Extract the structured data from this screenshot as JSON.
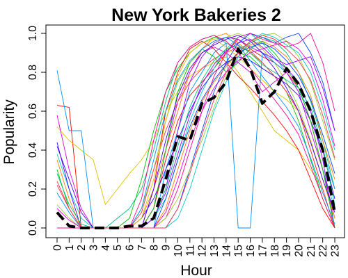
{
  "chart_data": {
    "type": "line",
    "title": "New York Bakeries 2",
    "xlabel": "Hour",
    "ylabel": "Popularity",
    "x": [
      0,
      1,
      2,
      3,
      4,
      5,
      6,
      7,
      8,
      9,
      10,
      11,
      12,
      13,
      14,
      15,
      16,
      17,
      18,
      19,
      20,
      21,
      22,
      23
    ],
    "x_tick_labels": [
      "0",
      "1",
      "2",
      "3",
      "4",
      "5",
      "6",
      "7",
      "8",
      "9",
      "10",
      "11",
      "12",
      "13",
      "14",
      "15",
      "16",
      "17",
      "18",
      "19",
      "20",
      "21",
      "22",
      "23"
    ],
    "y_tick_labels": [
      "0.0",
      "0.2",
      "0.4",
      "0.6",
      "0.8",
      "1.0"
    ],
    "y_ticks": [
      0,
      0.2,
      0.4,
      0.6,
      0.8,
      1.0
    ],
    "xlim": [
      0,
      23
    ],
    "ylim": [
      0,
      1.0
    ],
    "grid": false,
    "legend": "none",
    "mean_series": {
      "style": "black-dashed",
      "values": [
        0.08,
        0.01,
        0.0,
        0.0,
        0.0,
        0.0,
        0.01,
        0.01,
        0.05,
        0.25,
        0.47,
        0.45,
        0.64,
        0.67,
        0.75,
        0.92,
        0.82,
        0.64,
        0.7,
        0.82,
        0.74,
        0.6,
        0.4,
        0.08
      ]
    },
    "series_palette": [
      "#ff0000",
      "#ff7f00",
      "#e0c000",
      "#9acd32",
      "#00c000",
      "#00c080",
      "#00c8c8",
      "#0090ff",
      "#0040ff",
      "#4000ff",
      "#9000ff",
      "#e000e0",
      "#ff0090",
      "#ff3050"
    ],
    "series": [
      {
        "values": [
          0.63,
          0.62,
          0.0,
          0.0,
          0.0,
          0.0,
          0.0,
          0.0,
          0.1,
          0.35,
          0.55,
          0.68,
          0.75,
          0.82,
          0.9,
          0.97,
          0.92,
          0.88,
          0.85,
          0.8,
          0.72,
          0.55,
          0.3,
          0.05
        ]
      },
      {
        "values": [
          0.0,
          0.0,
          0.0,
          0.0,
          0.0,
          0.0,
          0.0,
          0.05,
          0.2,
          0.4,
          0.6,
          0.8,
          0.92,
          0.98,
          1.0,
          0.95,
          0.9,
          0.85,
          0.78,
          0.7,
          0.6,
          0.4,
          0.2,
          0.0
        ]
      },
      {
        "values": [
          0.52,
          0.45,
          0.4,
          0.35,
          0.12,
          0.2,
          0.28,
          0.35,
          0.45,
          0.6,
          0.7,
          0.78,
          0.82,
          0.85,
          0.88,
          0.8,
          0.7,
          0.6,
          0.5,
          0.45,
          0.4,
          0.3,
          0.2,
          0.0
        ]
      },
      {
        "values": [
          0.0,
          0.0,
          0.0,
          0.0,
          0.0,
          0.0,
          0.0,
          0.1,
          0.3,
          0.55,
          0.75,
          0.85,
          0.92,
          0.96,
          0.98,
          1.0,
          0.97,
          0.92,
          0.85,
          0.75,
          0.62,
          0.45,
          0.25,
          0.05
        ]
      },
      {
        "values": [
          0.3,
          0.1,
          0.0,
          0.0,
          0.0,
          0.0,
          0.05,
          0.25,
          0.5,
          0.7,
          0.82,
          0.9,
          0.95,
          0.98,
          0.96,
          0.9,
          0.88,
          0.82,
          0.78,
          0.7,
          0.55,
          0.35,
          0.15,
          0.0
        ]
      },
      {
        "values": [
          0.0,
          0.0,
          0.0,
          0.0,
          0.0,
          0.05,
          0.1,
          0.2,
          0.4,
          0.65,
          0.85,
          0.93,
          0.97,
          0.99,
          0.95,
          0.92,
          0.95,
          0.98,
          0.96,
          0.9,
          0.8,
          0.65,
          0.45,
          0.2
        ]
      },
      {
        "values": [
          0.38,
          0.2,
          0.05,
          0.0,
          0.0,
          0.0,
          0.0,
          0.0,
          0.05,
          0.15,
          0.35,
          0.55,
          0.7,
          0.82,
          0.92,
          0.98,
          1.0,
          0.95,
          0.88,
          0.8,
          0.7,
          0.5,
          0.3,
          0.1
        ]
      },
      {
        "values": [
          0.81,
          0.5,
          0.5,
          0.0,
          0.0,
          0.0,
          0.0,
          0.0,
          0.0,
          0.3,
          0.5,
          0.7,
          0.8,
          0.9,
          0.95,
          0.0,
          0.0,
          0.9,
          0.85,
          0.8,
          0.7,
          0.6,
          0.4,
          0.2
        ]
      },
      {
        "values": [
          0.0,
          0.0,
          0.0,
          0.0,
          0.0,
          0.0,
          0.0,
          0.0,
          0.0,
          0.0,
          0.1,
          0.3,
          0.5,
          0.7,
          0.85,
          0.95,
          1.0,
          0.98,
          0.95,
          0.98,
          1.0,
          0.9,
          0.75,
          0.5
        ]
      },
      {
        "values": [
          0.44,
          0.2,
          0.0,
          0.0,
          0.0,
          0.0,
          0.0,
          0.05,
          0.15,
          0.3,
          0.45,
          0.6,
          0.72,
          0.8,
          0.85,
          0.88,
          0.86,
          0.82,
          0.78,
          0.74,
          0.68,
          0.55,
          0.4,
          0.15
        ]
      },
      {
        "values": [
          0.0,
          0.0,
          0.0,
          0.0,
          0.0,
          0.0,
          0.0,
          0.0,
          0.05,
          0.2,
          0.5,
          0.75,
          0.88,
          0.95,
          0.98,
          0.97,
          0.93,
          0.9,
          0.87,
          0.82,
          0.75,
          0.6,
          0.35,
          0.0
        ]
      },
      {
        "values": [
          0.58,
          0.3,
          0.1,
          0.0,
          0.0,
          0.0,
          0.0,
          0.0,
          0.1,
          0.4,
          0.65,
          0.8,
          0.9,
          0.93,
          0.9,
          0.85,
          0.8,
          0.7,
          0.75,
          0.8,
          0.7,
          0.5,
          0.3,
          0.05
        ]
      },
      {
        "values": [
          0.0,
          0.0,
          0.0,
          0.0,
          0.0,
          0.0,
          0.0,
          0.0,
          0.0,
          0.05,
          0.2,
          0.4,
          0.6,
          0.78,
          0.9,
          0.98,
          1.0,
          0.97,
          0.95,
          0.93,
          0.95,
          1.0,
          0.85,
          0.6
        ]
      },
      {
        "values": [
          0.22,
          0.1,
          0.0,
          0.0,
          0.0,
          0.0,
          0.0,
          0.08,
          0.3,
          0.5,
          0.65,
          0.75,
          0.82,
          0.87,
          0.9,
          0.93,
          0.91,
          0.85,
          0.78,
          0.7,
          0.6,
          0.4,
          0.2,
          0.0
        ]
      },
      {
        "values": [
          0.0,
          0.0,
          0.0,
          0.0,
          0.0,
          0.0,
          0.0,
          0.0,
          0.2,
          0.6,
          0.8,
          0.92,
          0.96,
          0.92,
          0.85,
          0.78,
          0.72,
          0.65,
          0.58,
          0.5,
          0.4,
          0.25,
          0.1,
          0.0
        ]
      },
      {
        "values": [
          0.35,
          0.15,
          0.0,
          0.0,
          0.0,
          0.0,
          0.0,
          0.0,
          0.0,
          0.1,
          0.3,
          0.5,
          0.65,
          0.75,
          0.83,
          0.9,
          0.94,
          0.96,
          0.93,
          0.88,
          0.8,
          0.68,
          0.45,
          0.25
        ]
      },
      {
        "values": [
          0.0,
          0.0,
          0.0,
          0.0,
          0.0,
          0.0,
          0.0,
          0.05,
          0.25,
          0.55,
          0.78,
          0.9,
          0.95,
          0.97,
          0.93,
          0.88,
          0.82,
          0.76,
          0.7,
          0.66,
          0.6,
          0.45,
          0.25,
          0.05
        ]
      },
      {
        "values": [
          0.12,
          0.05,
          0.0,
          0.0,
          0.0,
          0.0,
          0.0,
          0.0,
          0.0,
          0.05,
          0.15,
          0.3,
          0.45,
          0.62,
          0.78,
          0.88,
          0.95,
          0.99,
          1.0,
          0.96,
          0.88,
          0.75,
          0.55,
          0.35
        ]
      },
      {
        "values": [
          0.0,
          0.0,
          0.0,
          0.0,
          0.0,
          0.0,
          0.0,
          0.0,
          0.1,
          0.4,
          0.7,
          0.85,
          0.92,
          0.88,
          0.8,
          0.85,
          0.92,
          0.96,
          0.9,
          0.82,
          0.72,
          0.55,
          0.3,
          0.0
        ]
      },
      {
        "values": [
          0.28,
          0.12,
          0.02,
          0.0,
          0.0,
          0.0,
          0.0,
          0.0,
          0.05,
          0.2,
          0.42,
          0.62,
          0.76,
          0.86,
          0.92,
          0.94,
          0.9,
          0.84,
          0.8,
          0.76,
          0.72,
          0.62,
          0.42,
          0.12
        ]
      },
      {
        "values": [
          0.0,
          0.0,
          0.0,
          0.0,
          0.0,
          0.0,
          0.0,
          0.0,
          0.0,
          0.0,
          0.05,
          0.2,
          0.4,
          0.6,
          0.75,
          0.88,
          0.96,
          1.0,
          0.98,
          0.94,
          0.9,
          0.8,
          0.62,
          0.4
        ]
      },
      {
        "values": [
          0.18,
          0.08,
          0.0,
          0.0,
          0.0,
          0.0,
          0.0,
          0.1,
          0.35,
          0.6,
          0.76,
          0.86,
          0.92,
          0.96,
          0.98,
          0.94,
          0.86,
          0.78,
          0.7,
          0.62,
          0.52,
          0.36,
          0.18,
          0.02
        ]
      },
      {
        "values": [
          0.0,
          0.0,
          0.0,
          0.0,
          0.0,
          0.0,
          0.0,
          0.0,
          0.0,
          0.15,
          0.35,
          0.52,
          0.66,
          0.76,
          0.84,
          0.9,
          0.93,
          0.95,
          0.92,
          0.86,
          0.78,
          0.66,
          0.48,
          0.28
        ]
      },
      {
        "values": [
          0.42,
          0.25,
          0.08,
          0.0,
          0.0,
          0.0,
          0.0,
          0.0,
          0.2,
          0.45,
          0.68,
          0.82,
          0.9,
          0.94,
          0.97,
          0.99,
          0.96,
          0.9,
          0.82,
          0.72,
          0.6,
          0.44,
          0.25,
          0.08
        ]
      },
      {
        "values": [
          0.0,
          0.0,
          0.0,
          0.0,
          0.0,
          0.0,
          0.0,
          0.0,
          0.05,
          0.18,
          0.38,
          0.58,
          0.74,
          0.84,
          0.91,
          0.95,
          0.97,
          0.93,
          0.87,
          0.84,
          0.86,
          0.88,
          0.72,
          0.5
        ]
      },
      {
        "values": [
          0.1,
          0.04,
          0.0,
          0.0,
          0.0,
          0.0,
          0.0,
          0.0,
          0.0,
          0.08,
          0.25,
          0.45,
          0.6,
          0.72,
          0.8,
          0.86,
          0.9,
          0.92,
          0.94,
          0.96,
          0.92,
          0.84,
          0.66,
          0.42
        ]
      },
      {
        "values": [
          0.0,
          0.0,
          0.0,
          0.0,
          0.0,
          0.0,
          0.0,
          0.15,
          0.45,
          0.7,
          0.85,
          0.93,
          0.97,
          0.99,
          0.96,
          0.9,
          0.82,
          0.74,
          0.66,
          0.58,
          0.48,
          0.32,
          0.15,
          0.0
        ]
      },
      {
        "values": [
          0.24,
          0.1,
          0.0,
          0.0,
          0.0,
          0.0,
          0.0,
          0.0,
          0.0,
          0.0,
          0.1,
          0.28,
          0.48,
          0.66,
          0.8,
          0.9,
          0.96,
          0.99,
          0.97,
          0.92,
          0.86,
          0.76,
          0.58,
          0.36
        ]
      }
    ]
  }
}
